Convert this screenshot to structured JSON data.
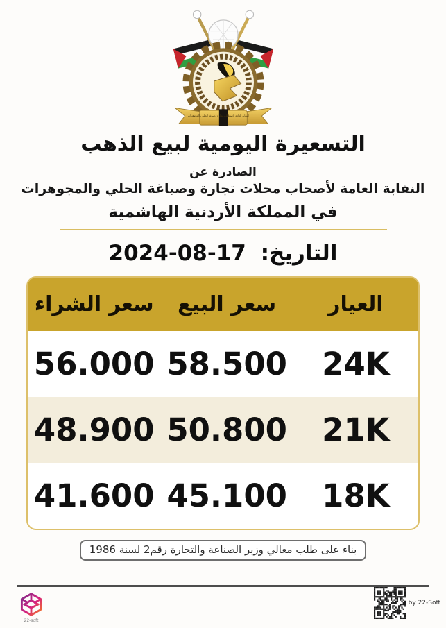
{
  "page": {
    "title": "التسعيرة اليومية لبيع الذهب",
    "issued_by_label": "الصادرة عن",
    "issuer": "النقابة العامة لأصحاب محلات تجارة وصياغة الحلي والمجوهرات",
    "country": "في المملكة الأردنية الهاشمية"
  },
  "emblem": {
    "ribbon_text": "النقابة العامة لأصحاب محلات تجارة وصياغة الحلي والمجوهرات"
  },
  "date": {
    "label": "التاريخ:",
    "value": "17-08-2024"
  },
  "table": {
    "headers": [
      "العيار",
      "سعر البيع",
      "سعر الشراء"
    ],
    "rows": [
      {
        "karat": "24K",
        "sell": "58.500",
        "buy": "56.000"
      },
      {
        "karat": "21K",
        "sell": "50.800",
        "buy": "48.900"
      },
      {
        "karat": "18K",
        "sell": "45.100",
        "buy": "41.600"
      }
    ]
  },
  "footer": {
    "note": "بناء على طلب معالي وزير الصناعة والتجارة رقم2 لسنة 1986"
  },
  "branding": {
    "qr_caption": "by 22-Soft",
    "logo_caption": "22-soft"
  },
  "colors": {
    "gold": "#c9a42c",
    "cream": "#f3eddc",
    "table_border": "#ddc06a",
    "separator": "#d9bd62"
  }
}
